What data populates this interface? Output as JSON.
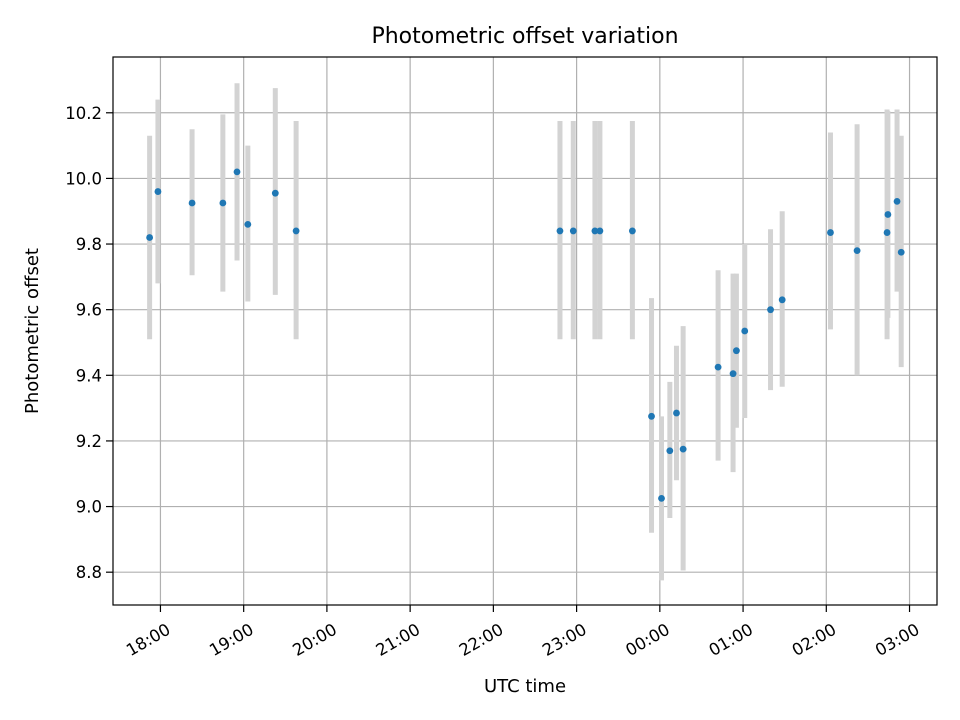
{
  "chart_data": {
    "type": "scatter",
    "title": "Photometric offset variation",
    "xlabel": "UTC time",
    "ylabel": "Photometric offset",
    "x_unit": "hours since 18:00 UTC (values past 24 wrap to next day)",
    "xlim": [
      -0.57,
      9.33
    ],
    "ylim": [
      8.7,
      10.37
    ],
    "x_ticks": [
      0,
      1,
      2,
      3,
      4,
      5,
      6,
      7,
      8,
      9
    ],
    "x_tick_labels": [
      "18:00",
      "19:00",
      "20:00",
      "21:00",
      "22:00",
      "23:00",
      "00:00",
      "01:00",
      "02:00",
      "03:00"
    ],
    "y_ticks": [
      8.8,
      9.0,
      9.2,
      9.4,
      9.6,
      9.8,
      10.0,
      10.2
    ],
    "y_tick_labels": [
      "8.8",
      "9.0",
      "9.2",
      "9.4",
      "9.6",
      "9.8",
      "10.0",
      "10.2"
    ],
    "grid": true,
    "marker_color": "#1f77b4",
    "errorbar_color": "#d3d3d3",
    "points": [
      {
        "x": -0.13,
        "y": 9.82,
        "lo": 9.51,
        "hi": 10.13
      },
      {
        "x": -0.03,
        "y": 9.96,
        "lo": 9.68,
        "hi": 10.24
      },
      {
        "x": 0.38,
        "y": 9.925,
        "lo": 9.705,
        "hi": 10.15
      },
      {
        "x": 0.75,
        "y": 9.925,
        "lo": 9.655,
        "hi": 10.195
      },
      {
        "x": 0.92,
        "y": 10.02,
        "lo": 9.75,
        "hi": 10.29
      },
      {
        "x": 1.05,
        "y": 9.86,
        "lo": 9.625,
        "hi": 10.1
      },
      {
        "x": 1.38,
        "y": 9.955,
        "lo": 9.645,
        "hi": 10.275
      },
      {
        "x": 1.63,
        "y": 9.84,
        "lo": 9.51,
        "hi": 10.175
      },
      {
        "x": 4.8,
        "y": 9.84,
        "lo": 9.51,
        "hi": 10.175
      },
      {
        "x": 4.96,
        "y": 9.84,
        "lo": 9.51,
        "hi": 10.175
      },
      {
        "x": 5.22,
        "y": 9.84,
        "lo": 9.51,
        "hi": 10.175
      },
      {
        "x": 5.28,
        "y": 9.84,
        "lo": 9.51,
        "hi": 10.175
      },
      {
        "x": 5.67,
        "y": 9.84,
        "lo": 9.51,
        "hi": 10.175
      },
      {
        "x": 5.9,
        "y": 9.275,
        "lo": 8.92,
        "hi": 9.635
      },
      {
        "x": 6.02,
        "y": 9.025,
        "lo": 8.775,
        "hi": 9.275
      },
      {
        "x": 6.12,
        "y": 9.17,
        "lo": 8.965,
        "hi": 9.38
      },
      {
        "x": 6.2,
        "y": 9.285,
        "lo": 9.08,
        "hi": 9.49
      },
      {
        "x": 6.28,
        "y": 9.175,
        "lo": 8.805,
        "hi": 9.55
      },
      {
        "x": 6.7,
        "y": 9.425,
        "lo": 9.14,
        "hi": 9.72
      },
      {
        "x": 6.88,
        "y": 9.405,
        "lo": 9.105,
        "hi": 9.71
      },
      {
        "x": 6.92,
        "y": 9.475,
        "lo": 9.24,
        "hi": 9.71
      },
      {
        "x": 7.02,
        "y": 9.535,
        "lo": 9.27,
        "hi": 9.8
      },
      {
        "x": 7.33,
        "y": 9.6,
        "lo": 9.355,
        "hi": 9.845
      },
      {
        "x": 7.47,
        "y": 9.63,
        "lo": 9.365,
        "hi": 9.9
      },
      {
        "x": 8.05,
        "y": 9.835,
        "lo": 9.54,
        "hi": 10.14
      },
      {
        "x": 8.37,
        "y": 9.78,
        "lo": 9.4,
        "hi": 10.165
      },
      {
        "x": 8.73,
        "y": 9.835,
        "lo": 9.51,
        "hi": 10.21
      },
      {
        "x": 8.74,
        "y": 9.89,
        "lo": 9.575,
        "hi": 10.205
      },
      {
        "x": 8.85,
        "y": 9.93,
        "lo": 9.655,
        "hi": 10.21
      },
      {
        "x": 8.9,
        "y": 9.775,
        "lo": 9.425,
        "hi": 10.13
      }
    ]
  }
}
